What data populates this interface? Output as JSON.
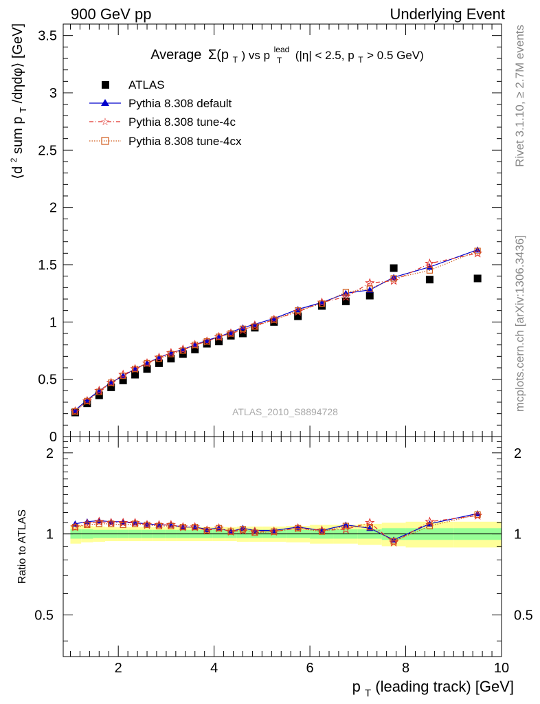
{
  "header": {
    "left": "900 GeV pp",
    "right": "Underlying Event"
  },
  "side_labels": {
    "top": "Rivet 3.1.10, ≥ 2.7M events",
    "bottom": "mcplots.cern.ch [arXiv:1306.3436]"
  },
  "watermark": "ATLAS_2010_S8894728",
  "colors": {
    "atlas": "#000000",
    "default": "#0000cc",
    "tune4c": "#e0302a",
    "tune4cx": "#d05a1a",
    "band_inner": "#96ff96",
    "band_outer": "#ffff99"
  },
  "chart_data": [
    {
      "type": "scatter",
      "title": {
        "main": "Average",
        "sym": "Σ(p",
        "sub_t": "T",
        "mid": ") vs p",
        "sup": "lead",
        "sub_t2": "T",
        "tail": " (|η| < 2.5, p",
        "sub_t3": "T",
        "end": " > 0.5 GeV)"
      },
      "ylabel": {
        "pre": "⟨d",
        "sup": "2",
        "mid": " sum p",
        "sub": "T",
        "post": "/dηdφ⟩ [GeV]"
      },
      "xlim": [
        0.85,
        10.0
      ],
      "ylim": [
        0,
        3.6
      ],
      "yticks": [
        "0",
        "0.5",
        "1",
        "1.5",
        "2",
        "2.5",
        "3",
        "3.5"
      ],
      "x": [
        1.1,
        1.35,
        1.6,
        1.85,
        2.1,
        2.35,
        2.6,
        2.85,
        3.1,
        3.35,
        3.6,
        3.85,
        4.1,
        4.35,
        4.6,
        4.85,
        5.25,
        5.75,
        6.25,
        6.75,
        7.25,
        7.75,
        8.5,
        9.5
      ],
      "series": [
        {
          "name": "ATLAS",
          "marker": "square",
          "values": [
            0.21,
            0.29,
            0.36,
            0.43,
            0.49,
            0.54,
            0.59,
            0.64,
            0.68,
            0.72,
            0.76,
            0.81,
            0.83,
            0.88,
            0.9,
            0.95,
            1.0,
            1.05,
            1.14,
            1.18,
            1.23,
            1.47,
            1.37,
            1.38
          ]
        },
        {
          "name": "Pythia 8.308 default",
          "marker": "triangle",
          "values": [
            0.23,
            0.32,
            0.4,
            0.47,
            0.53,
            0.59,
            0.64,
            0.69,
            0.73,
            0.76,
            0.8,
            0.84,
            0.87,
            0.91,
            0.95,
            0.98,
            1.03,
            1.11,
            1.17,
            1.25,
            1.28,
            1.39,
            1.48,
            1.63
          ]
        },
        {
          "name": "Pythia 8.308 tune-4c",
          "marker": "star",
          "values": [
            0.22,
            0.31,
            0.4,
            0.47,
            0.54,
            0.59,
            0.64,
            0.69,
            0.73,
            0.76,
            0.8,
            0.83,
            0.87,
            0.9,
            0.93,
            0.97,
            1.02,
            1.09,
            1.17,
            1.22,
            1.34,
            1.36,
            1.51,
            1.6
          ]
        },
        {
          "name": "Pythia 8.308 tune-4cx",
          "marker": "open-square",
          "values": [
            0.22,
            0.31,
            0.39,
            0.47,
            0.53,
            0.59,
            0.64,
            0.68,
            0.72,
            0.75,
            0.8,
            0.83,
            0.87,
            0.9,
            0.94,
            0.96,
            1.02,
            1.1,
            1.16,
            1.26,
            1.29,
            1.38,
            1.45,
            1.62
          ]
        }
      ]
    },
    {
      "type": "line",
      "ylabel": "Ratio to ATLAS",
      "xlabel": {
        "pre": "p",
        "sub": "T",
        "post": " (leading track) [GeV]"
      },
      "xlim": [
        0.85,
        10.0
      ],
      "ylim": [
        0.35,
        2.3
      ],
      "xticks": [
        "2",
        "4",
        "6",
        "8",
        "10"
      ],
      "yticks": [
        "0.5",
        "1",
        "2"
      ],
      "band_edges": [
        1.0,
        1.225,
        1.475,
        1.725,
        1.975,
        2.225,
        2.475,
        2.725,
        2.975,
        3.225,
        3.475,
        3.725,
        3.975,
        4.225,
        4.475,
        4.725,
        5.0,
        5.5,
        6.0,
        6.5,
        7.0,
        7.5,
        8.0,
        9.0,
        10.0
      ],
      "band_inner": [
        0.04,
        0.04,
        0.035,
        0.035,
        0.035,
        0.035,
        0.035,
        0.035,
        0.035,
        0.035,
        0.035,
        0.035,
        0.035,
        0.035,
        0.035,
        0.035,
        0.035,
        0.035,
        0.04,
        0.04,
        0.04,
        0.05,
        0.05,
        0.05
      ],
      "band_outer": [
        0.08,
        0.07,
        0.065,
        0.06,
        0.06,
        0.06,
        0.06,
        0.06,
        0.06,
        0.06,
        0.06,
        0.06,
        0.06,
        0.06,
        0.065,
        0.065,
        0.065,
        0.07,
        0.08,
        0.08,
        0.09,
        0.1,
        0.11,
        0.11
      ],
      "x": [
        1.1,
        1.35,
        1.6,
        1.85,
        2.1,
        2.35,
        2.6,
        2.85,
        3.1,
        3.35,
        3.6,
        3.85,
        4.1,
        4.35,
        4.6,
        4.85,
        5.25,
        5.75,
        6.25,
        6.75,
        7.25,
        7.75,
        8.5,
        9.5
      ],
      "series": [
        {
          "name": "Pythia 8.308 default",
          "values": [
            1.09,
            1.11,
            1.12,
            1.11,
            1.11,
            1.1,
            1.09,
            1.08,
            1.08,
            1.06,
            1.06,
            1.04,
            1.05,
            1.02,
            1.05,
            1.03,
            1.03,
            1.06,
            1.03,
            1.08,
            1.05,
            0.95,
            1.09,
            1.19
          ]
        },
        {
          "name": "Pythia 8.308 tune-4c",
          "values": [
            1.06,
            1.09,
            1.11,
            1.1,
            1.1,
            1.1,
            1.08,
            1.08,
            1.08,
            1.06,
            1.06,
            1.03,
            1.05,
            1.02,
            1.03,
            1.02,
            1.02,
            1.05,
            1.03,
            1.04,
            1.1,
            0.93,
            1.11,
            1.17
          ]
        },
        {
          "name": "Pythia 8.308 tune-4cx",
          "values": [
            1.06,
            1.08,
            1.09,
            1.09,
            1.08,
            1.09,
            1.08,
            1.07,
            1.07,
            1.06,
            1.06,
            1.03,
            1.05,
            1.02,
            1.04,
            1.01,
            1.02,
            1.05,
            1.02,
            1.07,
            1.06,
            0.94,
            1.07,
            1.18
          ]
        }
      ]
    }
  ]
}
